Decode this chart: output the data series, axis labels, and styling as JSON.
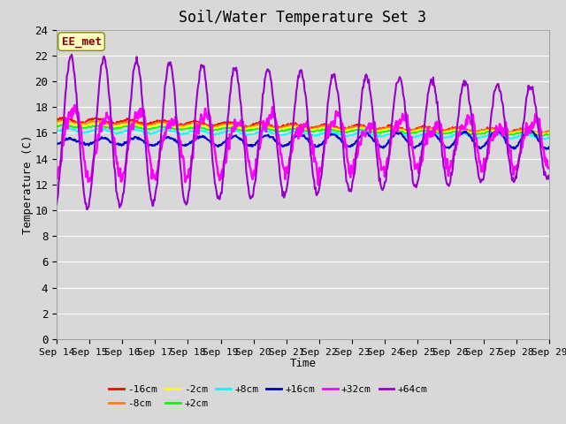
{
  "title": "Soil/Water Temperature Set 3",
  "xlabel": "Time",
  "ylabel": "Temperature (C)",
  "ylim": [
    0,
    24
  ],
  "yticks": [
    0,
    2,
    4,
    6,
    8,
    10,
    12,
    14,
    16,
    18,
    20,
    22,
    24
  ],
  "x_tick_labels": [
    "Sep 14",
    "Sep 15",
    "Sep 16",
    "Sep 17",
    "Sep 18",
    "Sep 19",
    "Sep 20",
    "Sep 21",
    "Sep 22",
    "Sep 23",
    "Sep 24",
    "Sep 25",
    "Sep 26",
    "Sep 27",
    "Sep 28",
    "Sep 29"
  ],
  "annotation_text": "EE_met",
  "annotation_color": "#8B0000",
  "annotation_bg": "#FFFFC0",
  "bg_color": "#D8D8D8",
  "plot_bg_color": "#D8D8D8",
  "grid_color": "#FFFFFF",
  "series": [
    {
      "label": "-16cm",
      "color": "#FF0000"
    },
    {
      "label": "-8cm",
      "color": "#FF8000"
    },
    {
      "label": "-2cm",
      "color": "#FFFF00"
    },
    {
      "label": "+2cm",
      "color": "#00FF00"
    },
    {
      "label": "+8cm",
      "color": "#00FFFF"
    },
    {
      "label": "+16cm",
      "color": "#0000CD"
    },
    {
      "label": "+32cm",
      "color": "#FF00FF"
    },
    {
      "label": "+64cm",
      "color": "#9900CC"
    }
  ]
}
